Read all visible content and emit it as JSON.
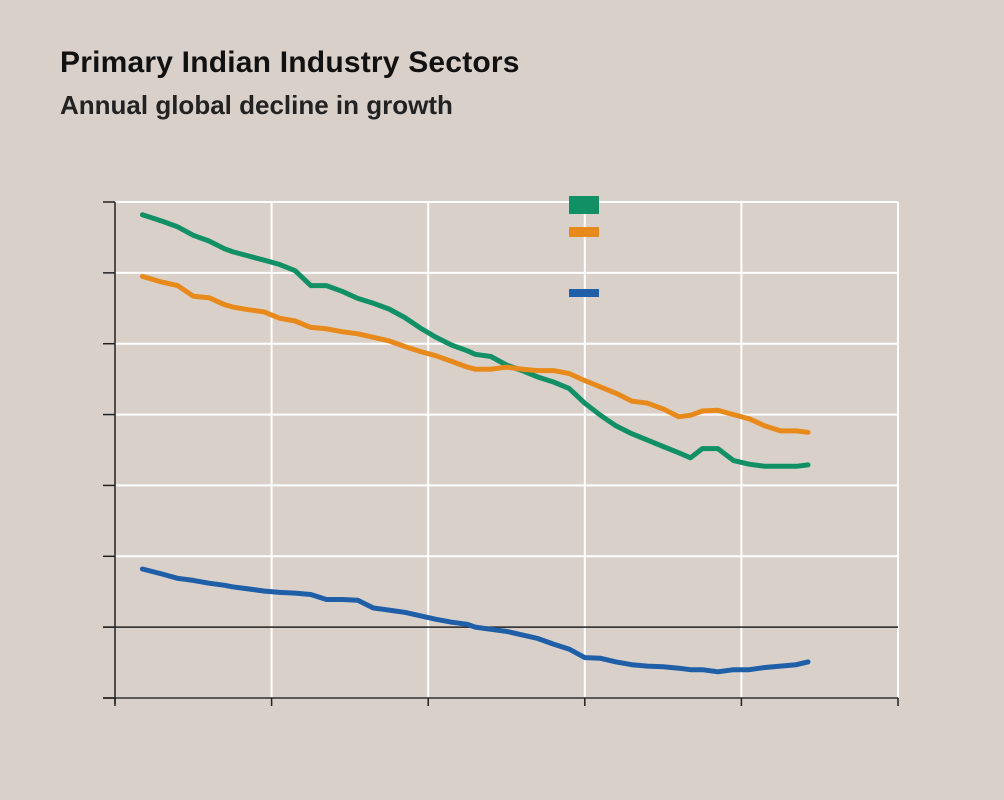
{
  "page": {
    "title": "Primary Indian Industry Sectors",
    "subtitle": "Annual global decline in growth",
    "background": "#d9d0c9"
  },
  "chart_data": {
    "type": "line",
    "title": "Primary Indian Industry Sectors",
    "subtitle": "Annual global decline in growth",
    "xlabel": "",
    "ylabel": "",
    "xlim": [
      0,
      100
    ],
    "ylim": [
      -1,
      6
    ],
    "zero_line": 0,
    "grid": true,
    "x_tick_values": [
      0,
      20,
      40,
      60,
      80,
      100
    ],
    "y_tick_values": [
      -1,
      0,
      1,
      2,
      3,
      4,
      5,
      6
    ],
    "legend_location": "top-center",
    "x": [
      3.5,
      6,
      8,
      10,
      12,
      14,
      15,
      17,
      19,
      21,
      23,
      25,
      27,
      29,
      31,
      33,
      35,
      37,
      39,
      41,
      43,
      45,
      46,
      48,
      50,
      52,
      54,
      56,
      58,
      60,
      62,
      64,
      66,
      68,
      70,
      72,
      73.5,
      75,
      77,
      79,
      81,
      83,
      85,
      87,
      88.5
    ],
    "series": [
      {
        "name": "",
        "color": "#119066",
        "values": [
          5.82,
          5.73,
          5.65,
          5.53,
          5.45,
          5.34,
          5.3,
          5.24,
          5.18,
          5.12,
          5.03,
          4.82,
          4.82,
          4.74,
          4.64,
          4.57,
          4.49,
          4.37,
          4.22,
          4.09,
          3.98,
          3.9,
          3.85,
          3.82,
          3.7,
          3.62,
          3.53,
          3.46,
          3.37,
          3.16,
          2.99,
          2.84,
          2.73,
          2.64,
          2.55,
          2.46,
          2.39,
          2.52,
          2.52,
          2.35,
          2.3,
          2.27,
          2.27,
          2.27,
          2.29
        ],
        "legend_line_width": "thick"
      },
      {
        "name": "",
        "color": "#e88a1b",
        "values": [
          4.95,
          4.87,
          4.82,
          4.67,
          4.65,
          4.55,
          4.52,
          4.48,
          4.45,
          4.36,
          4.32,
          4.23,
          4.21,
          4.17,
          4.14,
          4.09,
          4.04,
          3.96,
          3.89,
          3.83,
          3.75,
          3.67,
          3.64,
          3.64,
          3.67,
          3.64,
          3.62,
          3.62,
          3.58,
          3.48,
          3.39,
          3.3,
          3.19,
          3.16,
          3.08,
          2.97,
          2.99,
          3.05,
          3.06,
          3.0,
          2.94,
          2.84,
          2.77,
          2.77,
          2.75
        ],
        "legend_line_width": "medium"
      },
      {
        "name": "",
        "color": "#1f5fa7",
        "values": [
          0.82,
          0.75,
          0.69,
          0.66,
          0.62,
          0.59,
          0.57,
          0.54,
          0.51,
          0.49,
          0.48,
          0.46,
          0.39,
          0.39,
          0.38,
          0.27,
          0.24,
          0.21,
          0.16,
          0.11,
          0.07,
          0.04,
          0.0,
          -0.03,
          -0.06,
          -0.11,
          -0.16,
          -0.24,
          -0.31,
          -0.43,
          -0.44,
          -0.49,
          -0.53,
          -0.55,
          -0.56,
          -0.58,
          -0.6,
          -0.6,
          -0.63,
          -0.6,
          -0.6,
          -0.57,
          -0.55,
          -0.53,
          -0.49
        ],
        "legend_line_width": "medium"
      }
    ]
  }
}
